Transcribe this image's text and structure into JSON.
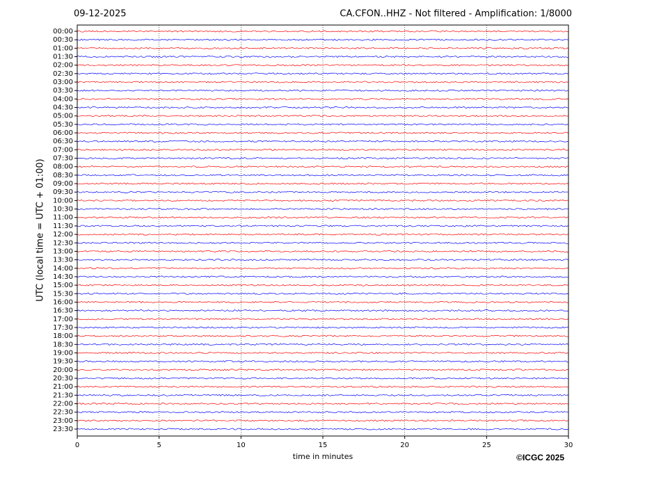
{
  "chart_data": {
    "type": "helicorder",
    "date": "09-12-2025",
    "title": "CA.CFON..HHZ - Not filtered - Amplification: 1/8000",
    "ylabel": "UTC (local time = UTC + 01:00)",
    "xlabel": "time in minutes",
    "credit": "©ICGC 2025",
    "categories": [
      "00:00",
      "00:30",
      "01:00",
      "01:30",
      "02:00",
      "02:30",
      "03:00",
      "03:30",
      "04:00",
      "04:30",
      "05:00",
      "05:30",
      "06:00",
      "06:30",
      "07:00",
      "07:30",
      "08:00",
      "08:30",
      "09:00",
      "09:30",
      "10:00",
      "10:30",
      "11:00",
      "11:30",
      "12:00",
      "12:30",
      "13:00",
      "13:30",
      "14:00",
      "14:30",
      "15:00",
      "15:30",
      "16:00",
      "16:30",
      "17:00",
      "17:30",
      "18:00",
      "18:30",
      "19:00",
      "19:30",
      "20:00",
      "20:30",
      "21:00",
      "21:30",
      "22:00",
      "22:30",
      "23:00",
      "23:30"
    ],
    "colors": [
      "#ff0000",
      "#0000ff"
    ],
    "xlim": [
      0,
      30
    ],
    "xticks": [
      0,
      5,
      10,
      15,
      20,
      25,
      30
    ],
    "grid": true
  }
}
